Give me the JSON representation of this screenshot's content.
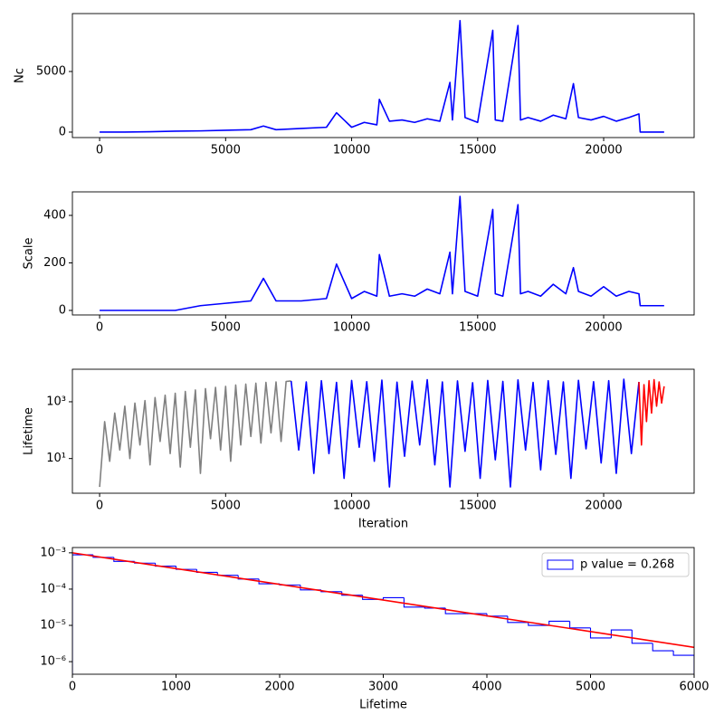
{
  "chart_data": [
    {
      "type": "line",
      "ylabel": "Nc",
      "xlim": [
        -1080,
        23590
      ],
      "ylim": [
        -450,
        9780
      ],
      "xticks": [
        0,
        5000,
        10000,
        15000,
        20000
      ],
      "yticks": [
        0,
        5000
      ],
      "log_y": false,
      "series": [
        {
          "color": "blue",
          "x": [
            0,
            1000,
            2000,
            3000,
            4000,
            5000,
            6000,
            6500,
            7000,
            8000,
            9000,
            9400,
            10000,
            10500,
            11000,
            11100,
            11500,
            12000,
            12500,
            13000,
            13500,
            13900,
            14000,
            14300,
            14500,
            15000,
            15600,
            15700,
            16000,
            16600,
            16700,
            17000,
            17500,
            18000,
            18500,
            18800,
            19000,
            19500,
            20000,
            20500,
            21000,
            21400,
            21450,
            22400
          ],
          "values": [
            0,
            0,
            30,
            80,
            100,
            150,
            200,
            500,
            200,
            300,
            400,
            1600,
            400,
            800,
            600,
            2700,
            900,
            1000,
            800,
            1100,
            900,
            4100,
            1000,
            9200,
            1200,
            800,
            8400,
            1000,
            900,
            8800,
            1000,
            1200,
            900,
            1400,
            1100,
            4000,
            1200,
            1000,
            1300,
            900,
            1200,
            1500,
            0,
            0
          ]
        }
      ]
    },
    {
      "type": "line",
      "ylabel": "Scale",
      "xlim": [
        -1080,
        23590
      ],
      "ylim": [
        -19,
        499
      ],
      "xticks": [
        0,
        5000,
        10000,
        15000,
        20000
      ],
      "yticks": [
        0,
        200,
        400
      ],
      "log_y": false,
      "series": [
        {
          "color": "blue",
          "x": [
            0,
            1000,
            2000,
            3000,
            4000,
            5000,
            6000,
            6500,
            7000,
            8000,
            9000,
            9400,
            10000,
            10500,
            11000,
            11100,
            11500,
            12000,
            12500,
            13000,
            13500,
            13900,
            14000,
            14300,
            14500,
            15000,
            15600,
            15700,
            16000,
            16600,
            16700,
            17000,
            17500,
            18000,
            18500,
            18800,
            19000,
            19500,
            20000,
            20500,
            21000,
            21400,
            21450,
            22400
          ],
          "values": [
            0,
            0,
            0,
            0,
            20,
            30,
            40,
            135,
            40,
            40,
            50,
            195,
            50,
            80,
            60,
            235,
            60,
            70,
            60,
            90,
            70,
            245,
            70,
            480,
            80,
            60,
            425,
            70,
            60,
            445,
            70,
            80,
            60,
            110,
            70,
            180,
            80,
            60,
            100,
            60,
            80,
            70,
            20,
            20
          ]
        }
      ]
    },
    {
      "type": "line",
      "ylabel": "Lifetime",
      "xlabel": "Iteration",
      "xlim": [
        -1080,
        23590
      ],
      "ylim": [
        0.6,
        14000
      ],
      "xticks": [
        0,
        5000,
        10000,
        15000,
        20000
      ],
      "yticks": [
        {
          "value": 10,
          "label": "10¹"
        },
        {
          "value": 1000,
          "label": "10³"
        }
      ],
      "log_y": true,
      "series": [
        {
          "color": "gray",
          "x": [
            0,
            200,
            400,
            600,
            800,
            1000,
            1200,
            1400,
            1600,
            1800,
            2000,
            2200,
            2400,
            2600,
            2800,
            3000,
            3200,
            3400,
            3600,
            3800,
            4000,
            4200,
            4400,
            4600,
            4800,
            5000,
            5200,
            5400,
            5600,
            5800,
            6000,
            6200,
            6400,
            6600,
            6800,
            7000,
            7200,
            7400,
            7600
          ],
          "values": [
            1,
            200,
            8,
            400,
            20,
            700,
            10,
            900,
            30,
            1100,
            6,
            1400,
            40,
            1700,
            15,
            2000,
            5,
            2300,
            25,
            2600,
            3,
            2900,
            50,
            3200,
            20,
            3500,
            8,
            3900,
            30,
            4200,
            60,
            4500,
            35,
            4800,
            80,
            5000,
            40,
            5200,
            5400
          ]
        },
        {
          "color": "blue",
          "x": [
            7600,
            7900,
            8200,
            8500,
            8800,
            9100,
            9400,
            9700,
            10000,
            10300,
            10600,
            10900,
            11200,
            11500,
            11800,
            12100,
            12400,
            12700,
            13000,
            13300,
            13600,
            13900,
            14200,
            14500,
            14800,
            15100,
            15400,
            15700,
            16000,
            16300,
            16600,
            16900,
            17200,
            17500,
            17800,
            18100,
            18400,
            18700,
            19000,
            19300,
            19600,
            19900,
            20200,
            20500,
            20800,
            21100,
            21400
          ],
          "values": [
            5400,
            20,
            5000,
            3,
            5500,
            15,
            4800,
            2,
            5600,
            25,
            5100,
            8,
            5800,
            1,
            4900,
            12,
            5300,
            30,
            6000,
            6,
            5000,
            1,
            5400,
            18,
            4700,
            2,
            5600,
            9,
            5200,
            1,
            5900,
            20,
            4800,
            4,
            5500,
            14,
            5000,
            2,
            5700,
            22,
            5100,
            7,
            5500,
            3,
            6200,
            15,
            5000
          ]
        },
        {
          "color": "red",
          "x": [
            21400,
            21500,
            21600,
            21700,
            21800,
            21900,
            22000,
            22100,
            22200,
            22300,
            22400
          ],
          "values": [
            5000,
            30,
            4000,
            200,
            5500,
            400,
            6000,
            700,
            5000,
            900,
            3500
          ]
        }
      ]
    },
    {
      "type": "histogram",
      "xlabel": "Lifetime",
      "xlim": [
        0,
        6000
      ],
      "ylim": [
        4.5e-07,
        0.0014
      ],
      "xticks": [
        0,
        1000,
        2000,
        3000,
        4000,
        5000,
        6000
      ],
      "yticks": [
        {
          "value": 0.001,
          "label": "10⁻³"
        },
        {
          "value": 0.0001,
          "label": "10⁻⁴"
        },
        {
          "value": 1e-05,
          "label": "10⁻⁵"
        },
        {
          "value": 1e-06,
          "label": "10⁻⁶"
        }
      ],
      "log_y": true,
      "legend": "upper right",
      "series": [
        {
          "type": "histogram",
          "name": "p value = 0.268",
          "color": "blue",
          "bins": [
            0,
            200,
            400,
            600,
            800,
            1000,
            1200,
            1400,
            1600,
            1800,
            2000,
            2200,
            2400,
            2600,
            2800,
            3000,
            3200,
            3400,
            3600,
            3800,
            4000,
            4200,
            4400,
            4600,
            4800,
            5000,
            5200,
            5400,
            5600,
            5800,
            6000
          ],
          "values": [
            0.00088,
            0.00075,
            0.00058,
            0.00052,
            0.00043,
            0.00035,
            0.00029,
            0.00024,
            0.00019,
            0.00014,
            0.00013,
            9.5e-05,
            8.5e-05,
            6.8e-05,
            5.2e-05,
            5.8e-05,
            3.2e-05,
            3e-05,
            2.1e-05,
            2.1e-05,
            1.8e-05,
            1.2e-05,
            1e-05,
            1.3e-05,
            8.5e-06,
            4.5e-06,
            7.5e-06,
            3.2e-06,
            2e-06,
            1.5e-06
          ]
        },
        {
          "type": "line",
          "color": "red",
          "x": [
            0,
            6000
          ],
          "values": [
            0.001,
            2.48e-06
          ]
        }
      ]
    }
  ]
}
